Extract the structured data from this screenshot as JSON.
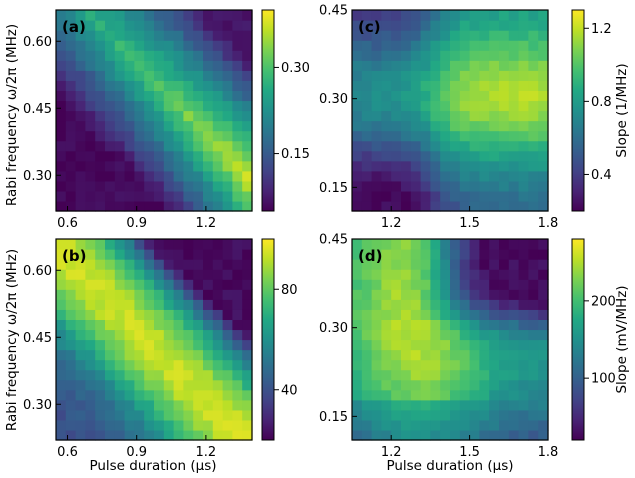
{
  "chart_data": [
    {
      "type": "heatmap",
      "panel_label": "(a)",
      "xlim": [
        0.55,
        1.4
      ],
      "ylim": [
        0.22,
        0.67
      ],
      "xticks": [
        0.6,
        0.9,
        1.2
      ],
      "xtick_labels": [
        "0.6",
        "0.9",
        "1.2"
      ],
      "yticks": [
        0.3,
        0.45,
        0.6
      ],
      "ytick_labels": [
        "0.30",
        "0.45",
        "0.60"
      ],
      "colorbar": {
        "range": [
          0.05,
          0.4
        ],
        "ticks": [
          0.15,
          0.3
        ],
        "tick_labels": [
          "0.15",
          "0.30"
        ],
        "label": ""
      },
      "pattern": "a",
      "grid": "20x20"
    },
    {
      "type": "heatmap",
      "panel_label": "(c)",
      "xlim": [
        1.05,
        1.8
      ],
      "ylim": [
        0.11,
        0.45
      ],
      "xticks": [
        1.2,
        1.5,
        1.8
      ],
      "xtick_labels": [
        "1.2",
        "1.5",
        "1.8"
      ],
      "yticks": [
        0.15,
        0.3,
        0.45
      ],
      "ytick_labels": [
        "0.15",
        "0.30",
        "0.45"
      ],
      "colorbar": {
        "range": [
          0.2,
          1.3
        ],
        "ticks": [
          0.4,
          0.8,
          1.2
        ],
        "tick_labels": [
          "0.4",
          "0.8",
          "1.2"
        ],
        "label": "Slope (1/MHz)"
      },
      "pattern": "c",
      "grid": "20x20"
    },
    {
      "type": "heatmap",
      "panel_label": "(b)",
      "xlim": [
        0.55,
        1.4
      ],
      "ylim": [
        0.22,
        0.67
      ],
      "xticks": [
        0.6,
        0.9,
        1.2
      ],
      "xtick_labels": [
        "0.6",
        "0.9",
        "1.2"
      ],
      "yticks": [
        0.3,
        0.45,
        0.6
      ],
      "ytick_labels": [
        "0.30",
        "0.45",
        "0.60"
      ],
      "colorbar": {
        "range": [
          20,
          100
        ],
        "ticks": [
          40,
          80
        ],
        "tick_labels": [
          "40",
          "80"
        ],
        "label": ""
      },
      "pattern": "b",
      "grid": "20x20"
    },
    {
      "type": "heatmap",
      "panel_label": "(d)",
      "xlim": [
        1.05,
        1.8
      ],
      "ylim": [
        0.11,
        0.45
      ],
      "xticks": [
        1.2,
        1.5,
        1.8
      ],
      "xtick_labels": [
        "1.2",
        "1.5",
        "1.8"
      ],
      "yticks": [
        0.15,
        0.3,
        0.45
      ],
      "ytick_labels": [
        "0.15",
        "0.30",
        "0.45"
      ],
      "colorbar": {
        "range": [
          20,
          280
        ],
        "ticks": [
          100,
          200
        ],
        "tick_labels": [
          "100",
          "200"
        ],
        "label": "Slope (mV/MHz)"
      },
      "pattern": "d",
      "grid": "20x20"
    }
  ],
  "labels": {
    "ylabel": "Rabi frequency ω/2π (MHz)",
    "xlabel": "Pulse duration (μs)"
  },
  "colormap": "viridis"
}
